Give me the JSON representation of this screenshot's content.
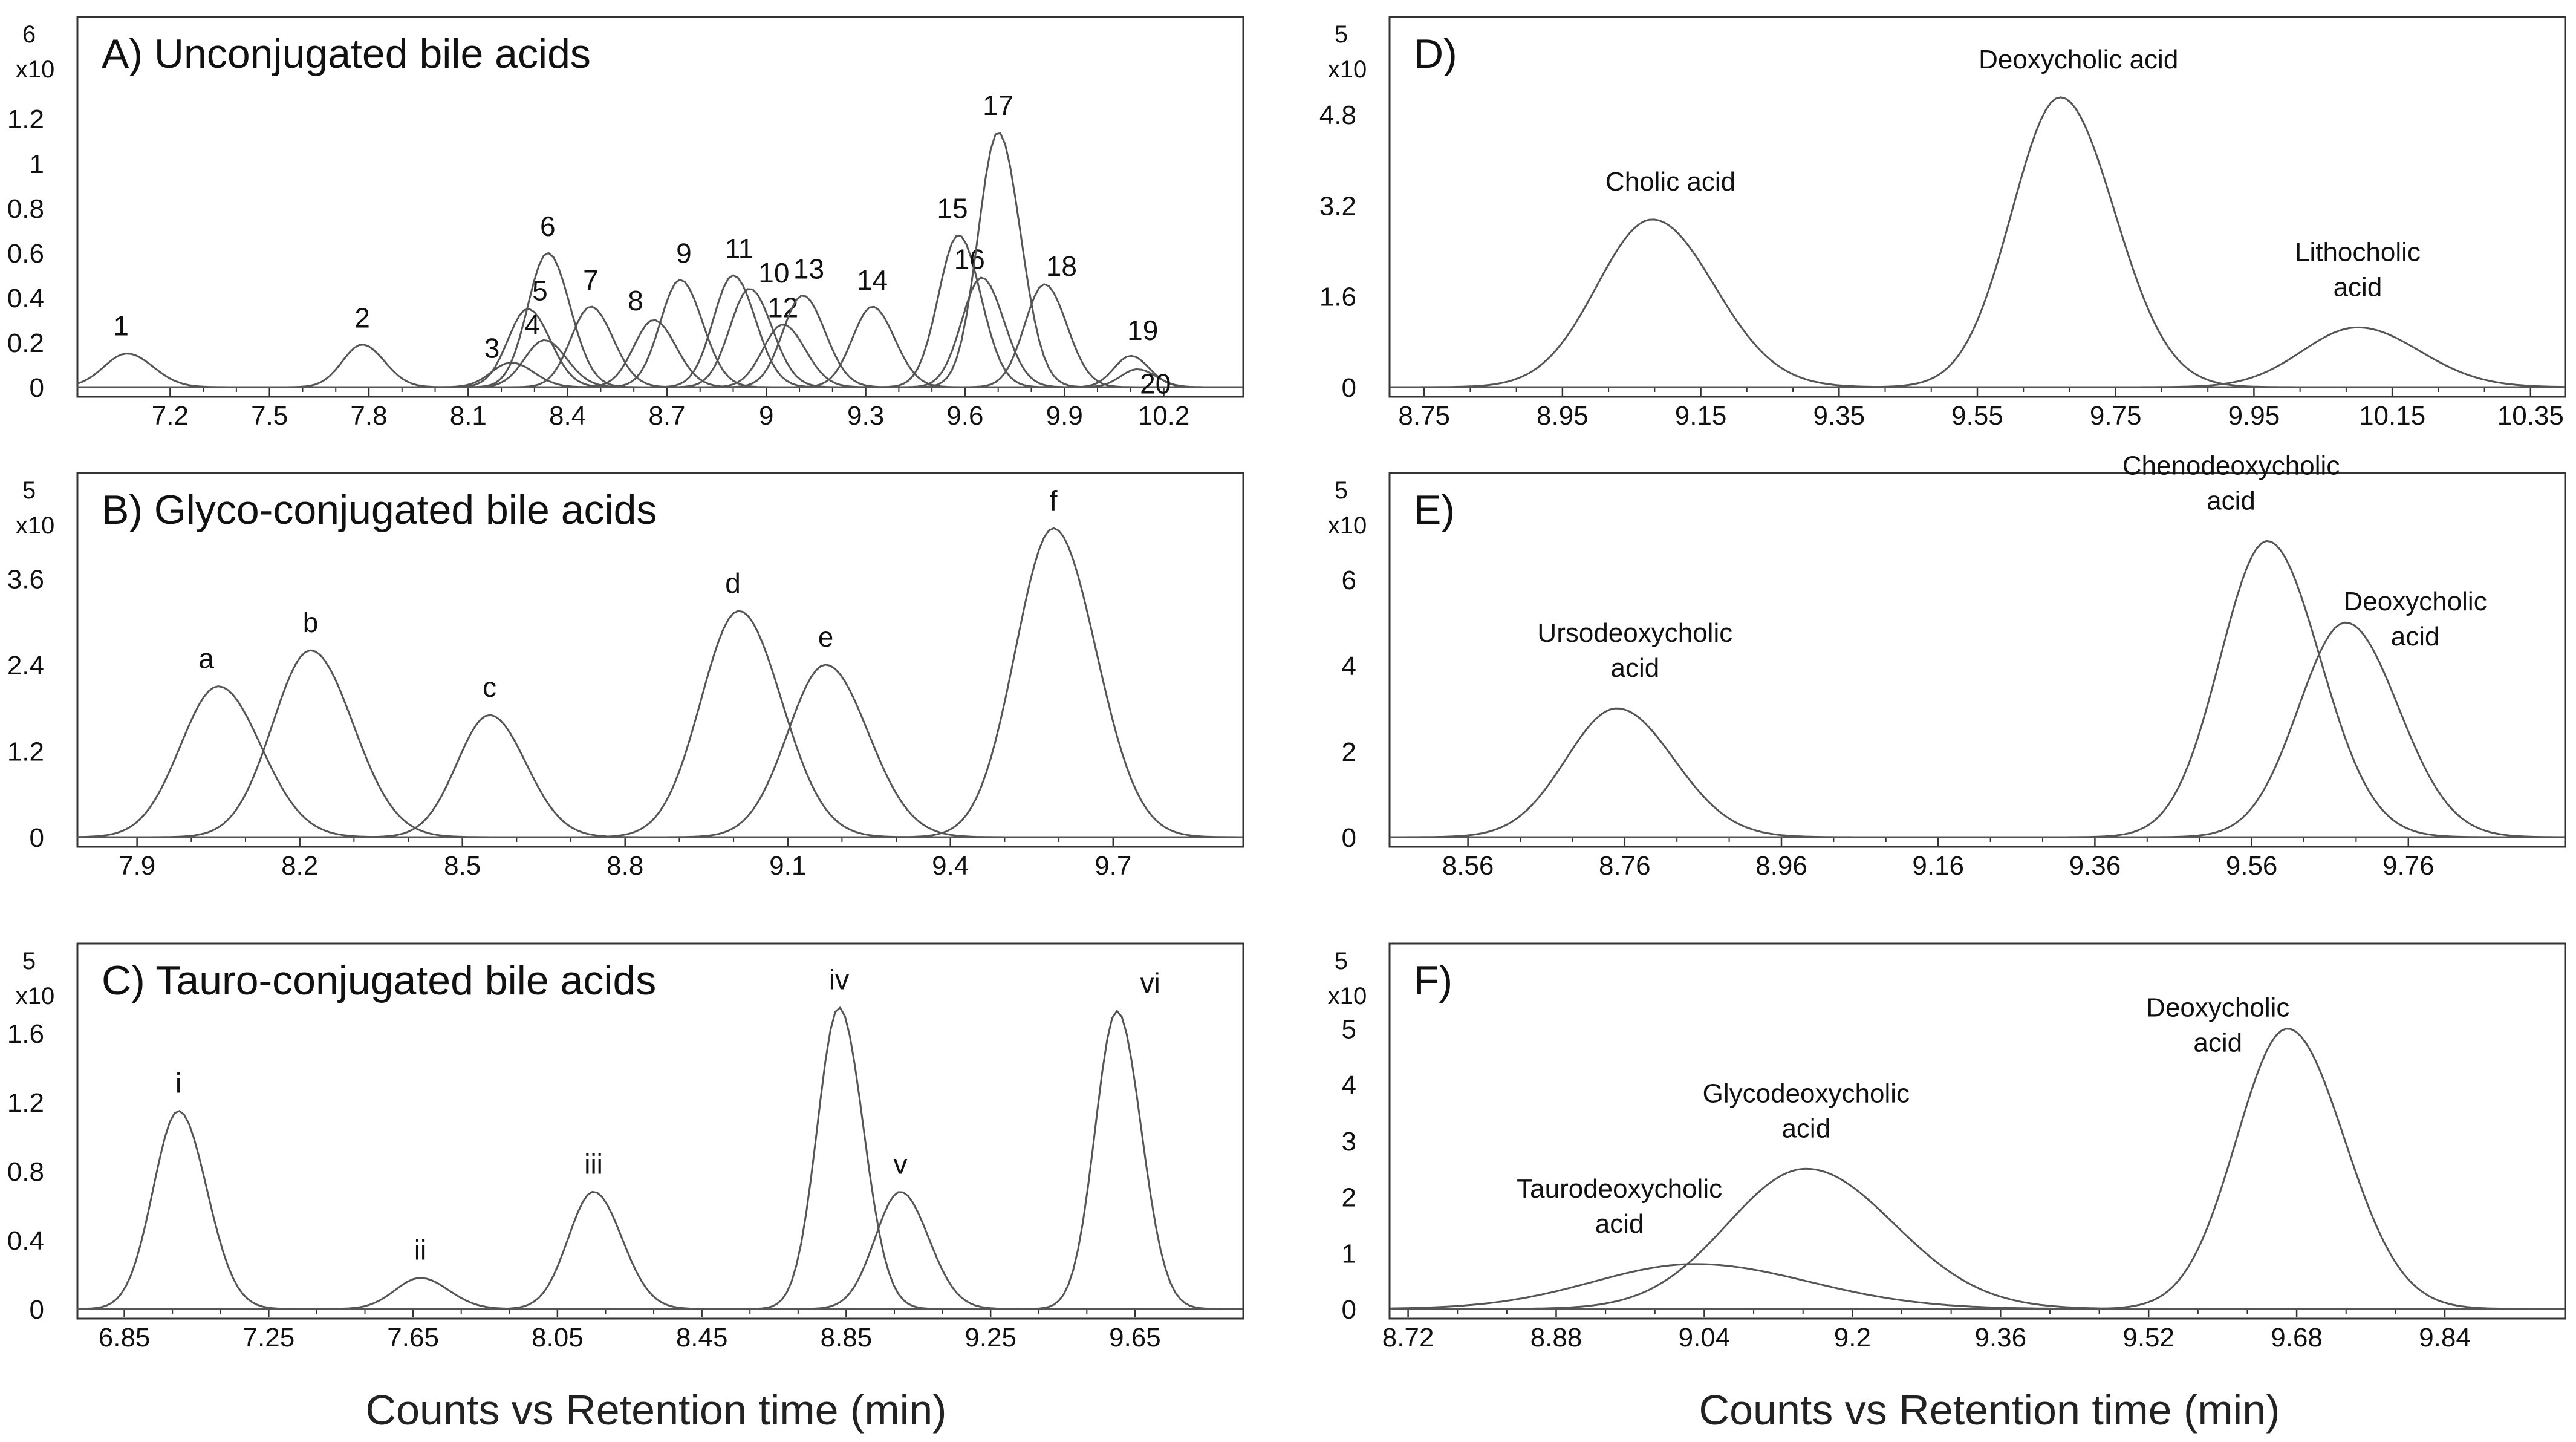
{
  "figure": {
    "xlabel_left": "Counts vs Retention time (min)",
    "xlabel_right": "Counts vs Retention time (min)",
    "line_color": "#555555",
    "frame_color": "#333333"
  },
  "chart_data": [
    {
      "id": "A",
      "type": "line",
      "title": "A) Unconjugated bile acids",
      "exponent": "6",
      "multiplier": "x10",
      "xlabel": "Counts vs Retention time (min)",
      "ylabel": "x10^6 counts",
      "xlim": [
        6.92,
        10.44
      ],
      "ylim": [
        0,
        1.6
      ],
      "xticks": [
        "7.2",
        "7.5",
        "7.8",
        "8.1",
        "8.4",
        "8.7",
        "9",
        "9.3",
        "9.6",
        "9.9",
        "10.2"
      ],
      "yticks": [
        "0",
        "0.2",
        "0.4",
        "0.6",
        "0.8",
        "1",
        "1.2"
      ],
      "series": [
        {
          "name": "1",
          "peak": 7.07,
          "height": 0.15,
          "sigma": 0.07
        },
        {
          "name": "2",
          "peak": 7.78,
          "height": 0.19,
          "sigma": 0.06
        },
        {
          "name": "3",
          "peak": 8.23,
          "height": 0.11,
          "sigma": 0.06
        },
        {
          "name": "4",
          "peak": 8.33,
          "height": 0.21,
          "sigma": 0.06
        },
        {
          "name": "5",
          "peak": 8.28,
          "height": 0.35,
          "sigma": 0.06
        },
        {
          "name": "6",
          "peak": 8.34,
          "height": 0.6,
          "sigma": 0.06
        },
        {
          "name": "7",
          "peak": 8.47,
          "height": 0.36,
          "sigma": 0.06
        },
        {
          "name": "8",
          "peak": 8.66,
          "height": 0.3,
          "sigma": 0.06
        },
        {
          "name": "9",
          "peak": 8.74,
          "height": 0.48,
          "sigma": 0.06
        },
        {
          "name": "10",
          "peak": 8.95,
          "height": 0.44,
          "sigma": 0.06
        },
        {
          "name": "11",
          "peak": 8.9,
          "height": 0.5,
          "sigma": 0.06
        },
        {
          "name": "12",
          "peak": 9.05,
          "height": 0.28,
          "sigma": 0.06
        },
        {
          "name": "13",
          "peak": 9.11,
          "height": 0.41,
          "sigma": 0.06
        },
        {
          "name": "14",
          "peak": 9.32,
          "height": 0.36,
          "sigma": 0.06
        },
        {
          "name": "15",
          "peak": 9.58,
          "height": 0.68,
          "sigma": 0.06
        },
        {
          "name": "16",
          "peak": 9.65,
          "height": 0.49,
          "sigma": 0.06
        },
        {
          "name": "17",
          "peak": 9.7,
          "height": 1.14,
          "sigma": 0.06
        },
        {
          "name": "18",
          "peak": 9.84,
          "height": 0.46,
          "sigma": 0.06
        },
        {
          "name": "19",
          "peak": 10.1,
          "height": 0.14,
          "sigma": 0.05
        },
        {
          "name": "20",
          "peak": 10.12,
          "height": 0.08,
          "sigma": 0.05
        }
      ]
    },
    {
      "id": "B",
      "type": "line",
      "title": "B) Glyco-conjugated bile acids",
      "exponent": "5",
      "multiplier": "x10",
      "xlabel": "Counts vs Retention time (min)",
      "ylabel": "x10^5 counts",
      "xlim": [
        7.79,
        9.94
      ],
      "ylim": [
        0,
        4.9
      ],
      "xticks": [
        "7.9",
        "8.2",
        "8.5",
        "8.8",
        "9.1",
        "9.4",
        "9.7"
      ],
      "yticks": [
        "0",
        "1.2",
        "2.4",
        "3.6"
      ],
      "series": [
        {
          "name": "a",
          "peak": 8.05,
          "height": 2.1,
          "sigma": 0.07
        },
        {
          "name": "b",
          "peak": 8.22,
          "height": 2.6,
          "sigma": 0.07
        },
        {
          "name": "c",
          "peak": 8.55,
          "height": 1.7,
          "sigma": 0.06
        },
        {
          "name": "d",
          "peak": 9.01,
          "height": 3.15,
          "sigma": 0.07
        },
        {
          "name": "e",
          "peak": 9.17,
          "height": 2.4,
          "sigma": 0.07
        },
        {
          "name": "f",
          "peak": 9.59,
          "height": 4.3,
          "sigma": 0.07
        }
      ]
    },
    {
      "id": "C",
      "type": "line",
      "title": "C) Tauro-conjugated bile acids",
      "exponent": "5",
      "multiplier": "x10",
      "xlabel": "Counts vs Retention time (min)",
      "ylabel": "x10^5 counts",
      "xlim": [
        6.72,
        9.95
      ],
      "ylim": [
        0,
        2.05
      ],
      "xticks": [
        "6.85",
        "7.25",
        "7.65",
        "8.05",
        "8.45",
        "8.85",
        "9.25",
        "9.65"
      ],
      "yticks": [
        "0",
        "0.4",
        "0.8",
        "1.2",
        "1.6"
      ],
      "series": [
        {
          "name": "i",
          "peak": 7.0,
          "height": 1.15,
          "sigma": 0.07
        },
        {
          "name": "ii",
          "peak": 7.67,
          "height": 0.18,
          "sigma": 0.07
        },
        {
          "name": "iii",
          "peak": 8.15,
          "height": 0.68,
          "sigma": 0.07
        },
        {
          "name": "iv",
          "peak": 8.83,
          "height": 1.75,
          "sigma": 0.06
        },
        {
          "name": "v",
          "peak": 9.0,
          "height": 0.68,
          "sigma": 0.07
        },
        {
          "name": "vi",
          "peak": 9.6,
          "height": 1.73,
          "sigma": 0.06
        }
      ]
    },
    {
      "id": "D",
      "type": "line",
      "title": "D)",
      "exponent": "5",
      "multiplier": "x10",
      "xlabel": "Counts vs Retention time (min)",
      "ylabel": "x10^5 counts",
      "xlim": [
        8.7,
        10.4
      ],
      "ylim": [
        0,
        6.3
      ],
      "xticks": [
        "8.75",
        "8.95",
        "9.15",
        "9.35",
        "9.55",
        "9.75",
        "9.95",
        "10.15",
        "10.35"
      ],
      "yticks": [
        "0",
        "1.6",
        "3.2",
        "4.8"
      ],
      "series": [
        {
          "name": "Cholic acid",
          "peak": 9.08,
          "height": 2.95,
          "sigma": 0.08
        },
        {
          "name": "Deoxycholic acid",
          "peak": 9.67,
          "height": 5.1,
          "sigma": 0.07
        },
        {
          "name": "Lithocholic acid",
          "peak": 10.1,
          "height": 1.05,
          "sigma": 0.08
        }
      ]
    },
    {
      "id": "E",
      "type": "line",
      "title": "E)",
      "exponent": "5",
      "multiplier": "x10",
      "xlabel": "Counts vs Retention time (min)",
      "ylabel": "x10^5 counts",
      "xlim": [
        8.46,
        9.96
      ],
      "ylim": [
        0,
        8.2
      ],
      "xticks": [
        "8.56",
        "8.76",
        "8.96",
        "9.16",
        "9.36",
        "9.56",
        "9.76"
      ],
      "yticks": [
        "0",
        "2",
        "4",
        "6"
      ],
      "series": [
        {
          "name": "Ursodeoxycholic acid",
          "peak": 8.75,
          "height": 3.0,
          "sigma": 0.065
        },
        {
          "name": "Chenodeoxycholic acid",
          "peak": 9.58,
          "height": 6.9,
          "sigma": 0.06
        },
        {
          "name": "Deoxycholic acid",
          "peak": 9.68,
          "height": 5.0,
          "sigma": 0.06
        }
      ]
    },
    {
      "id": "F",
      "type": "line",
      "title": "F)",
      "exponent": "5",
      "multiplier": "x10",
      "xlabel": "Counts vs Retention time (min)",
      "ylabel": "x10^5 counts",
      "xlim": [
        8.7,
        9.97
      ],
      "ylim": [
        0,
        6.3
      ],
      "xticks": [
        "8.72",
        "8.88",
        "9.04",
        "9.2",
        "9.36",
        "9.52",
        "9.68",
        "9.84"
      ],
      "yticks": [
        "0",
        "1",
        "2",
        "3",
        "4",
        "5"
      ],
      "series": [
        {
          "name": "Taurodeoxycholic acid",
          "peak": 9.03,
          "height": 0.8,
          "sigma": 0.11
        },
        {
          "name": "Glycodeoxycholic acid",
          "peak": 9.15,
          "height": 2.5,
          "sigma": 0.085
        },
        {
          "name": "Deoxycholic acid",
          "peak": 9.67,
          "height": 5.0,
          "sigma": 0.055
        }
      ]
    }
  ]
}
